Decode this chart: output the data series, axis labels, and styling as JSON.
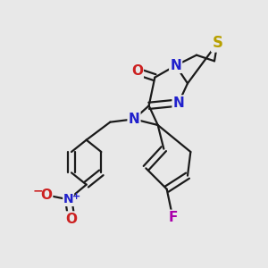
{
  "bg_color": "#e8e8e8",
  "bond_color": "#1a1a1a",
  "bond_width": 1.6,
  "figsize": [
    3.0,
    3.0
  ],
  "dpi": 100,
  "atoms": {
    "S": {
      "color": "#b8a000"
    },
    "N": {
      "color": "#2020cc"
    },
    "O": {
      "color": "#cc2020"
    },
    "F": {
      "color": "#aa00aa"
    },
    "NO_N": {
      "color": "#2020cc"
    },
    "NO_O": {
      "color": "#cc2020"
    }
  }
}
